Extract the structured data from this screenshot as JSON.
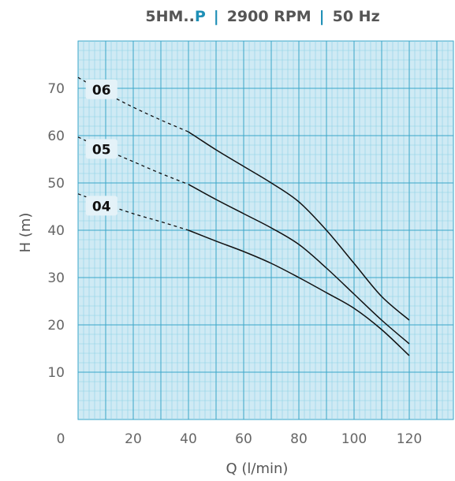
{
  "title": {
    "part1": "5HM..",
    "part2": "P",
    "sep1": "|",
    "part3": "2900 RPM",
    "sep2": "|",
    "part4": "50 Hz"
  },
  "colors": {
    "grid_bg": "#cfeaf4",
    "grid_major": "#3aa6c9",
    "grid_minor": "#8ccfe4",
    "accent": "#1e8fb6",
    "curve": "#111111",
    "label_bg": "#e4f2f8"
  },
  "chart_data": {
    "type": "line",
    "title": "5HM..P | 2900 RPM | 50 Hz",
    "xlabel": "Q (l/min)",
    "ylabel": "H (m)",
    "xlim": [
      0,
      136
    ],
    "ylim": [
      0,
      80
    ],
    "xticks": [
      0,
      20,
      40,
      60,
      80,
      100,
      120
    ],
    "yticks": [
      10,
      20,
      30,
      40,
      50,
      60,
      70
    ],
    "xtick_labels": [
      "0",
      "20",
      "40",
      "60",
      "80",
      "100",
      "120"
    ],
    "ytick_labels": [
      "10",
      "20",
      "30",
      "40",
      "50",
      "60",
      "70"
    ],
    "grid": true,
    "series": [
      {
        "name": "06",
        "dashed": [
          [
            0,
            72.3
          ],
          [
            10,
            69.0
          ],
          [
            20,
            66.0
          ],
          [
            30,
            63.3
          ],
          [
            40,
            60.8
          ]
        ],
        "solid": [
          [
            40,
            60.8
          ],
          [
            50,
            57.0
          ],
          [
            60,
            53.5
          ],
          [
            70,
            50.0
          ],
          [
            80,
            46.0
          ],
          [
            90,
            40.0
          ],
          [
            100,
            33.0
          ],
          [
            110,
            26.0
          ],
          [
            120,
            21.0
          ]
        ]
      },
      {
        "name": "05",
        "dashed": [
          [
            0,
            59.7
          ],
          [
            10,
            57.0
          ],
          [
            20,
            54.5
          ],
          [
            30,
            52.0
          ],
          [
            40,
            49.7
          ]
        ],
        "solid": [
          [
            40,
            49.7
          ],
          [
            50,
            46.5
          ],
          [
            60,
            43.5
          ],
          [
            70,
            40.5
          ],
          [
            80,
            37.0
          ],
          [
            90,
            32.0
          ],
          [
            100,
            26.5
          ],
          [
            110,
            21.0
          ],
          [
            120,
            16.0
          ]
        ]
      },
      {
        "name": "04",
        "dashed": [
          [
            0,
            47.7
          ],
          [
            10,
            45.5
          ],
          [
            20,
            43.5
          ],
          [
            30,
            41.8
          ],
          [
            40,
            40.0
          ]
        ],
        "solid": [
          [
            40,
            40.0
          ],
          [
            50,
            37.7
          ],
          [
            60,
            35.5
          ],
          [
            70,
            33.0
          ],
          [
            80,
            30.0
          ],
          [
            90,
            26.8
          ],
          [
            100,
            23.5
          ],
          [
            110,
            19.0
          ],
          [
            120,
            13.5
          ]
        ]
      }
    ]
  }
}
